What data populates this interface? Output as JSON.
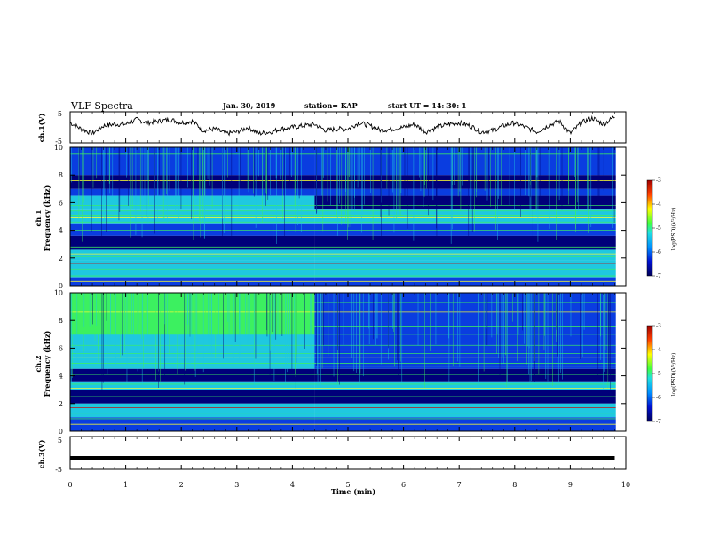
{
  "header": {
    "title": "VLF Spectra",
    "date": "Jan. 30, 2019",
    "station": "station= KAP",
    "start": "start  UT =   14: 30: 1"
  },
  "chart_data": [
    {
      "type": "line",
      "ylabel": "ch.1(V)",
      "ylim": [
        -5,
        5
      ],
      "yticks": [
        "5",
        "-5"
      ],
      "x": [
        0,
        0.2,
        0.4,
        0.6,
        0.8,
        1.0,
        1.2,
        1.4,
        1.6,
        1.8,
        2.0,
        2.2,
        2.4,
        2.6,
        2.8,
        3.0,
        3.2,
        3.4,
        3.6,
        3.8,
        4.0,
        4.2,
        4.4,
        4.6,
        4.8,
        5.0,
        5.2,
        5.4,
        5.6,
        5.8,
        6.0,
        6.2,
        6.4,
        6.6,
        6.8,
        7.0,
        7.2,
        7.4,
        7.6,
        7.8,
        8.0,
        8.2,
        8.4,
        8.6,
        8.8,
        9.0,
        9.2,
        9.4,
        9.6,
        9.8
      ],
      "values": [
        1.5,
        -0.5,
        -2.0,
        0.5,
        1.0,
        1.0,
        2.5,
        1.5,
        2.0,
        2.5,
        1.5,
        2.0,
        -1.0,
        -0.5,
        -2.0,
        -1.5,
        0,
        -2.0,
        -1.5,
        -0.5,
        0,
        0.5,
        1.0,
        -1.0,
        -0.5,
        -0.5,
        1.5,
        0.5,
        -1.0,
        -0.5,
        0,
        1.0,
        -1.5,
        0,
        1.0,
        1.5,
        0.5,
        -1.5,
        -1.0,
        0.5,
        1.5,
        0,
        -1.5,
        0.5,
        2.0,
        -2.0,
        1.5,
        3.0,
        1.0,
        3.5
      ]
    },
    {
      "type": "heatmap",
      "ylabel": "ch.1\nFrequency (kHz)",
      "ylim": [
        0,
        10
      ],
      "yticks": [
        "0",
        "2",
        "4",
        "6",
        "8",
        "10"
      ],
      "colorbar": {
        "label": "log(PSD)(V²/Hz)",
        "range": [
          -7,
          -3
        ],
        "ticks": [
          "-3",
          "-4",
          "-5",
          "-6",
          "-7"
        ]
      },
      "color_break_time_min": 4.4
    },
    {
      "type": "heatmap",
      "ylabel": "ch.2\nFrequency (kHz)",
      "ylim": [
        0,
        10
      ],
      "yticks": [
        "0",
        "2",
        "4",
        "6",
        "8",
        "10"
      ],
      "colorbar": {
        "label": "log(PSD)(V²/Hz)",
        "range": [
          -7,
          -3
        ],
        "ticks": [
          "-3",
          "-4",
          "-5",
          "-6",
          "-7"
        ]
      },
      "color_break_time_min": 4.4
    },
    {
      "type": "line",
      "ylabel": "ch.3(V)",
      "ylim": [
        -5,
        5
      ],
      "yticks": [
        "5",
        "-5"
      ],
      "x": [
        0,
        9.8
      ],
      "values": [
        -1.5,
        -1.5
      ]
    }
  ],
  "xaxis": {
    "label": "Time (min)",
    "range": [
      0,
      10
    ],
    "ticks": [
      "0",
      "1",
      "2",
      "3",
      "4",
      "5",
      "6",
      "7",
      "8",
      "9",
      "10"
    ]
  },
  "colors": {
    "dark_blue": "#00007a",
    "blue": "#0a3de0",
    "cyan": "#1fc8e0",
    "green": "#3cf060",
    "yellow": "#ffff30",
    "red": "#d00000"
  }
}
